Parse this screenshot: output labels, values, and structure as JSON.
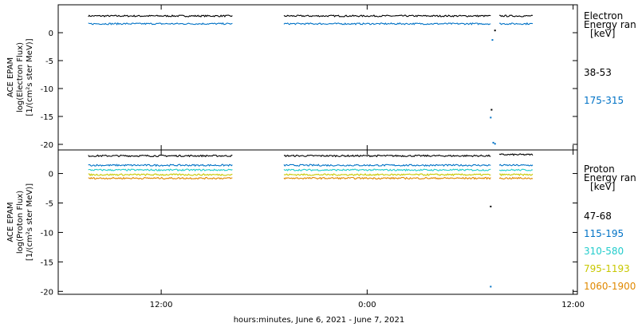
{
  "chart_data": [
    {
      "type": "scatter",
      "panel": "electron",
      "ylabel_lines": [
        "ACE EPAM",
        "log(Electron Flux)",
        "[1/(cm²s ster MeV)]"
      ],
      "ylim": [
        -21,
        5
      ],
      "yticks": [
        0,
        -5,
        -10,
        -15,
        -20
      ],
      "ytick_labels": [
        "0",
        "-5",
        "-10",
        "-15",
        "-20"
      ],
      "legend_title": [
        "Electron",
        "Energy ran",
        "[keV]"
      ],
      "legend_placement": "right",
      "series": [
        {
          "name": "38-53",
          "color": "#000000",
          "segments": [
            {
              "x_start": 3.5,
              "x_end": 20.3,
              "y": 3.0
            },
            {
              "x_start": 26.3,
              "x_end": 50.4,
              "y": 3.0
            },
            {
              "x_start": 51.4,
              "x_end": 55.3,
              "y": 3.0
            }
          ],
          "outliers": [
            {
              "x": 50.5,
              "y": -13.8
            },
            {
              "x": 50.9,
              "y": 0.4
            }
          ]
        },
        {
          "name": "175-315",
          "color": "#0072c6",
          "segments": [
            {
              "x_start": 3.5,
              "x_end": 20.3,
              "y": 1.6
            },
            {
              "x_start": 26.3,
              "x_end": 50.4,
              "y": 1.6
            },
            {
              "x_start": 51.4,
              "x_end": 55.3,
              "y": 1.6
            }
          ],
          "outliers": [
            {
              "x": 50.4,
              "y": -15.2
            },
            {
              "x": 50.6,
              "y": -1.3
            },
            {
              "x": 50.7,
              "y": -19.7
            },
            {
              "x": 50.9,
              "y": -19.9
            }
          ]
        }
      ]
    },
    {
      "type": "scatter",
      "panel": "proton",
      "ylabel_lines": [
        "ACE EPAM",
        "log(Proton Flux)",
        "[1/(cm²s ster MeV)]"
      ],
      "ylim": [
        -20.5,
        4
      ],
      "yticks": [
        0,
        -5,
        -10,
        -15,
        -20
      ],
      "ytick_labels": [
        "0",
        "-5",
        "-10",
        "-15",
        "-20"
      ],
      "legend_title": [
        "Proton",
        "Energy ran",
        "[keV]"
      ],
      "legend_placement": "right",
      "series": [
        {
          "name": "47-68",
          "color": "#000000",
          "segments": [
            {
              "x_start": 3.5,
              "x_end": 20.3,
              "y": 3.0
            },
            {
              "x_start": 26.3,
              "x_end": 50.4,
              "y": 3.0
            },
            {
              "x_start": 51.4,
              "x_end": 55.3,
              "y": 3.2
            }
          ],
          "outliers": [
            {
              "x": 50.4,
              "y": -5.6
            }
          ]
        },
        {
          "name": "115-195",
          "color": "#0072c6",
          "segments": [
            {
              "x_start": 3.5,
              "x_end": 20.3,
              "y": 1.4
            },
            {
              "x_start": 26.3,
              "x_end": 50.4,
              "y": 1.4
            },
            {
              "x_start": 51.4,
              "x_end": 55.3,
              "y": 1.4
            }
          ],
          "outliers": [
            {
              "x": 50.4,
              "y": -19.2
            }
          ]
        },
        {
          "name": "310-580",
          "color": "#22cccc",
          "segments": [
            {
              "x_start": 3.5,
              "x_end": 20.3,
              "y": 0.6
            },
            {
              "x_start": 26.3,
              "x_end": 50.4,
              "y": 0.6
            },
            {
              "x_start": 51.4,
              "x_end": 55.3,
              "y": 0.6
            }
          ]
        },
        {
          "name": "795-1193",
          "color": "#c8c800",
          "segments": [
            {
              "x_start": 3.5,
              "x_end": 20.3,
              "y": -0.2
            },
            {
              "x_start": 26.3,
              "x_end": 50.4,
              "y": -0.2
            },
            {
              "x_start": 51.4,
              "x_end": 55.3,
              "y": -0.2
            }
          ]
        },
        {
          "name": "1060-1900",
          "color": "#e08800",
          "segments": [
            {
              "x_start": 3.5,
              "x_end": 20.3,
              "y": -0.8
            },
            {
              "x_start": 26.3,
              "x_end": 50.4,
              "y": -0.8
            },
            {
              "x_start": 51.4,
              "x_end": 55.3,
              "y": -0.8
            }
          ]
        }
      ]
    }
  ],
  "x_axis": {
    "xlim": [
      0,
      60.5
    ],
    "ticks": [
      12,
      36,
      60
    ],
    "tick_labels": [
      "12:00",
      "0:00",
      "12:00"
    ],
    "xlabel": "hours:minutes, June  6, 2021 - June  7, 2021"
  }
}
